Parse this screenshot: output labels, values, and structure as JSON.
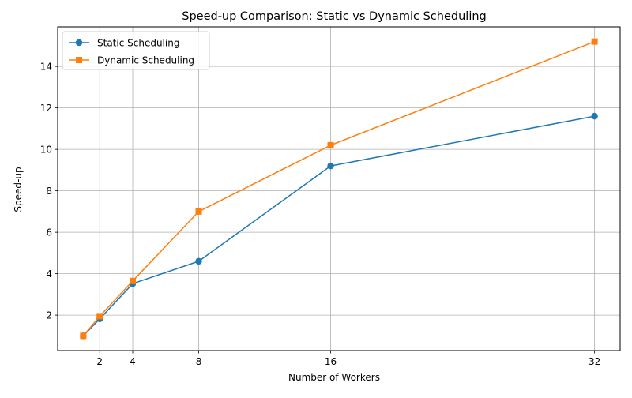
{
  "chart_data": {
    "type": "line",
    "title": "Speed-up Comparison: Static vs Dynamic Scheduling",
    "xlabel": "Number of Workers",
    "ylabel": "Speed-up",
    "x": [
      1,
      2,
      4,
      8,
      16,
      32
    ],
    "xticks": [
      2,
      4,
      8,
      16,
      32
    ],
    "yticks": [
      2,
      4,
      6,
      8,
      10,
      12,
      14
    ],
    "xlim": [
      -0.55,
      33.55
    ],
    "ylim": [
      0.29,
      15.91
    ],
    "grid": true,
    "legend_position": "top-left",
    "series": [
      {
        "name": "Static Scheduling",
        "values": [
          1.0,
          1.82,
          3.52,
          4.6,
          9.2,
          11.6
        ],
        "color": "#1f77b4",
        "marker": "circle"
      },
      {
        "name": "Dynamic Scheduling",
        "values": [
          1.0,
          1.95,
          3.65,
          7.0,
          10.2,
          15.2
        ],
        "color": "#ff7f0e",
        "marker": "square"
      }
    ]
  }
}
